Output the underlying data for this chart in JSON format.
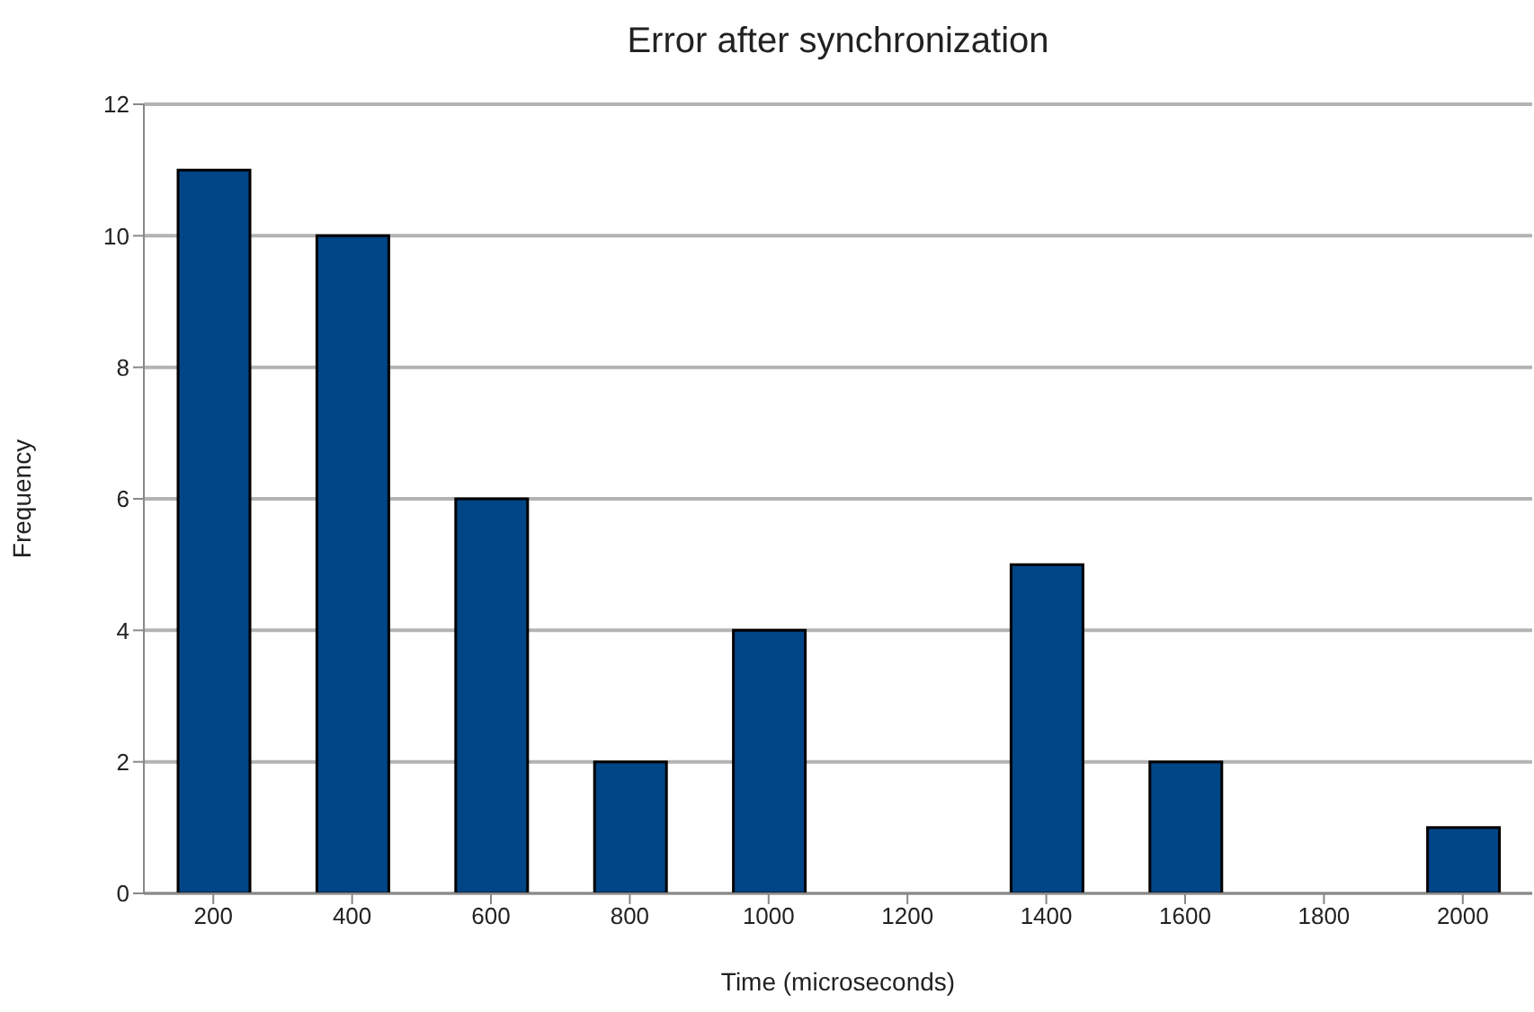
{
  "chart_data": {
    "type": "bar",
    "title": "Error after synchronization",
    "xlabel": "Time (microseconds)",
    "ylabel": "Frequency",
    "categories": [
      "200",
      "400",
      "600",
      "800",
      "1000",
      "1200",
      "1400",
      "1600",
      "1800",
      "2000"
    ],
    "values": [
      11,
      10,
      6,
      2,
      4,
      0,
      5,
      2,
      0,
      1
    ],
    "color": "#004586",
    "ylim": [
      0,
      12
    ],
    "yticks": [
      0,
      2,
      4,
      6,
      8,
      10,
      12
    ],
    "grid": "y"
  }
}
